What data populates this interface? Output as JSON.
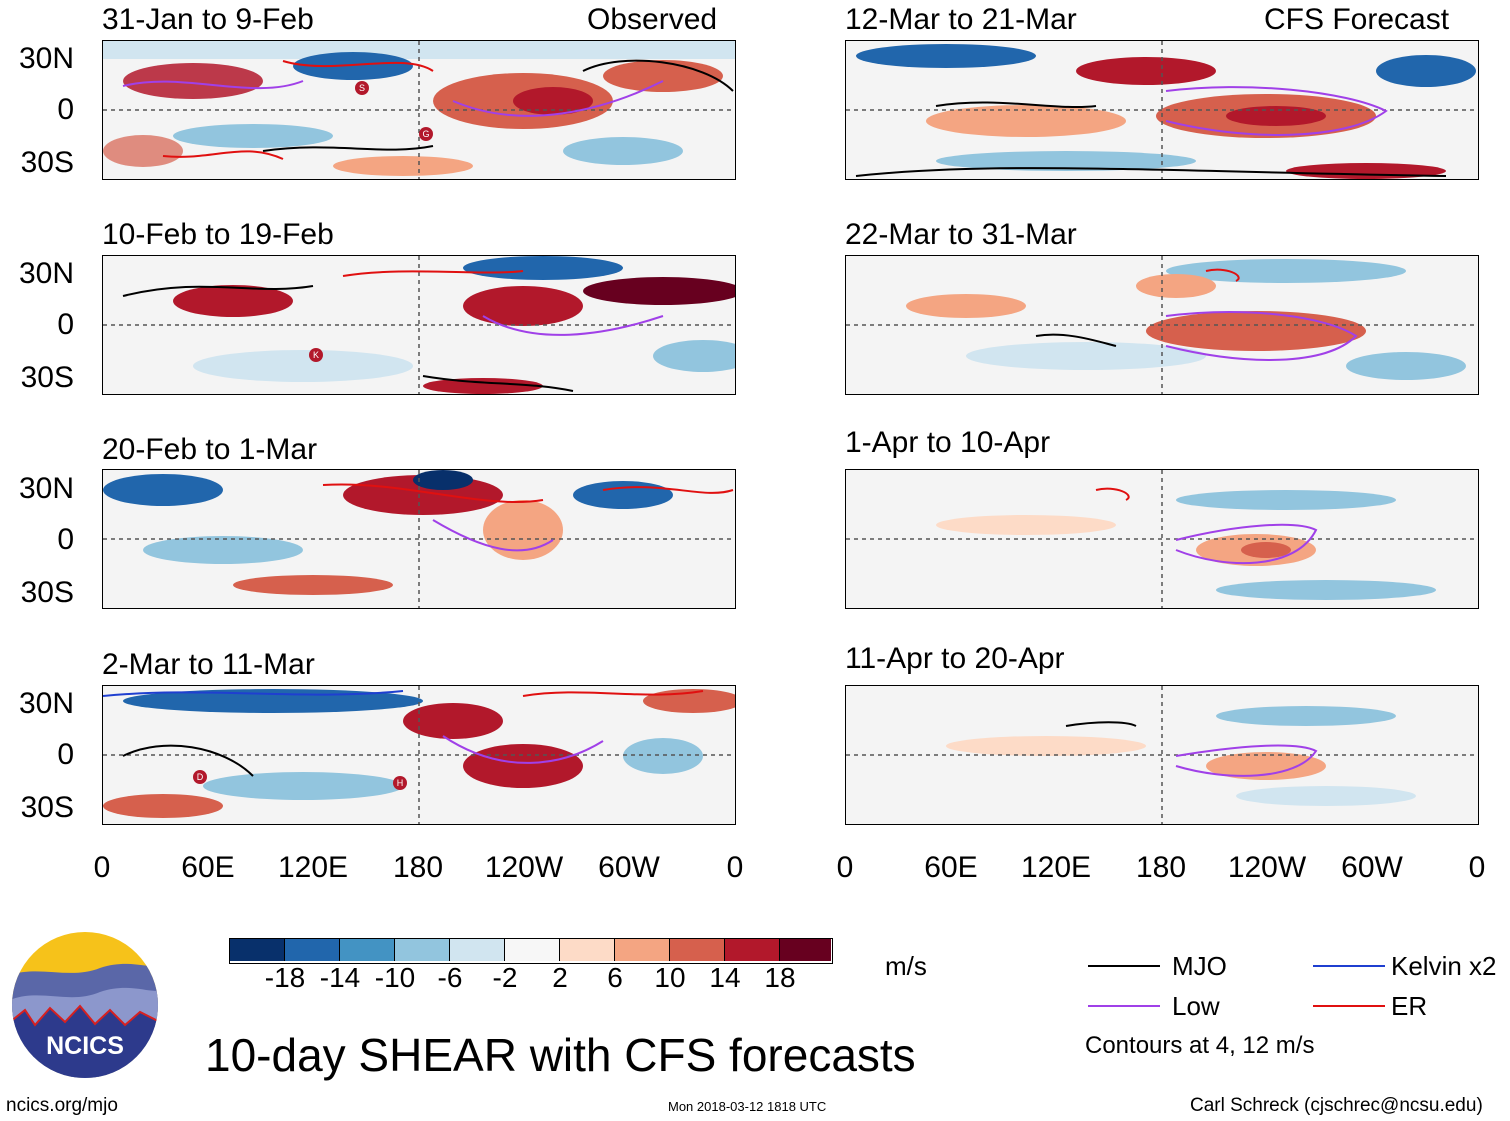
{
  "left_column": {
    "tag": "Observed",
    "panels": [
      {
        "title": "31-Jan to 9-Feb"
      },
      {
        "title": "10-Feb to 19-Feb"
      },
      {
        "title": "20-Feb to 1-Mar"
      },
      {
        "title": "2-Mar to 11-Mar"
      }
    ]
  },
  "right_column": {
    "tag": "CFS Forecast",
    "panels": [
      {
        "title": "12-Mar to 21-Mar"
      },
      {
        "title": "22-Mar to 31-Mar"
      },
      {
        "title": "1-Apr to 10-Apr"
      },
      {
        "title": "11-Apr to 20-Apr"
      }
    ]
  },
  "lat_labels": [
    "30N",
    "0",
    "30S"
  ],
  "lon_labels": [
    "0",
    "60E",
    "120E",
    "180",
    "120W",
    "60W",
    "0"
  ],
  "colorbar": {
    "ticks": [
      "-18",
      "-14",
      "-10",
      "-6",
      "-2",
      "2",
      "6",
      "10",
      "14",
      "18"
    ],
    "colors": [
      "#08306b",
      "#2166ac",
      "#4393c3",
      "#92c5de",
      "#d1e5f0",
      "#f7f7f7",
      "#fddbc7",
      "#f4a582",
      "#d6604d",
      "#b2182b",
      "#67001f"
    ],
    "units": "m/s"
  },
  "legend": {
    "items": [
      {
        "label": "MJO",
        "color": "#000000"
      },
      {
        "label": "Kelvin x2",
        "color": "#1f3fd0"
      },
      {
        "label": "Low",
        "color": "#a040e8"
      },
      {
        "label": "ER",
        "color": "#e01010"
      }
    ],
    "note": "Contours at 4, 12 m/s"
  },
  "storm_markers": [
    {
      "panel": "31-Jan to 9-Feb",
      "label": "S"
    },
    {
      "panel": "31-Jan to 9-Feb",
      "label": "G"
    },
    {
      "panel": "10-Feb to 19-Feb",
      "label": "K"
    },
    {
      "panel": "2-Mar to 11-Mar",
      "label": "D"
    },
    {
      "panel": "2-Mar to 11-Mar",
      "label": "H"
    }
  ],
  "logo": {
    "text": "NCICS"
  },
  "main_title": "10-day SHEAR with CFS forecasts",
  "footer": {
    "left": "ncics.org/mjo",
    "center": "Mon 2018-03-12 1818 UTC",
    "right": "Carl Schreck (cjschrec@ncsu.edu)"
  }
}
